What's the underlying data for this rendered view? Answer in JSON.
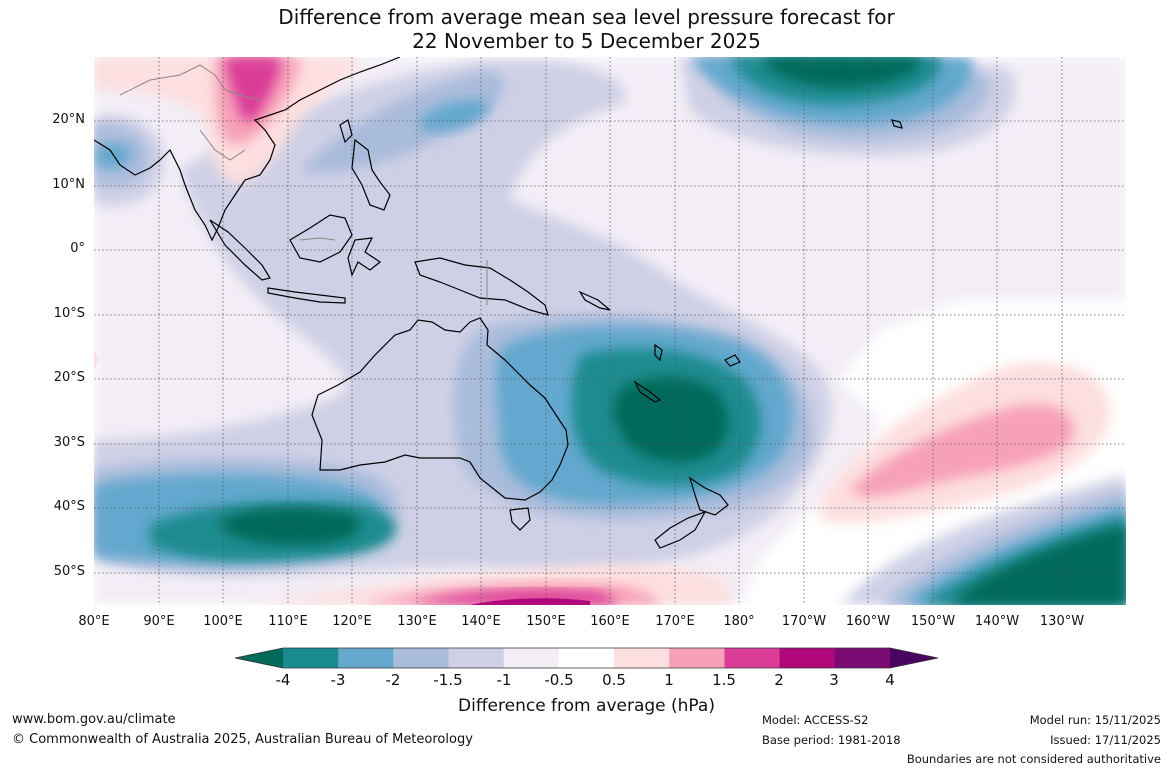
{
  "title": {
    "line1": "Difference from average mean sea level pressure forecast for",
    "line2": "22 November to 5 December 2025"
  },
  "map": {
    "latitude_labels": [
      "20°N",
      "10°N",
      "0°",
      "10°S",
      "20°S",
      "30°S",
      "40°S",
      "50°S"
    ],
    "longitude_labels": [
      "80°E",
      "90°E",
      "100°E",
      "110°E",
      "120°E",
      "130°E",
      "140°E",
      "150°E",
      "160°E",
      "170°E",
      "180°",
      "170°W",
      "160°W",
      "150°W",
      "140°W",
      "130°W"
    ],
    "anomaly_regions": [
      {
        "name": "southern-indian-ocean-low",
        "anomaly_hpa": -4
      },
      {
        "name": "tasman-coral-sea-low",
        "anomaly_hpa": -4
      },
      {
        "name": "north-pacific-low",
        "anomaly_hpa": -4
      },
      {
        "name": "southeast-pacific-low",
        "anomaly_hpa": -4
      },
      {
        "name": "south-pacific-high",
        "anomaly_hpa": 1.5
      },
      {
        "name": "southern-ocean-high",
        "anomaly_hpa": 3
      },
      {
        "name": "south-china-high",
        "anomaly_hpa": 1.5
      }
    ]
  },
  "colorbar": {
    "levels": [
      "-4",
      "-3",
      "-2",
      "-1.5",
      "-1",
      "-0.5",
      "0.5",
      "1",
      "1.5",
      "2",
      "3",
      "4"
    ],
    "colors": [
      "#006b5a",
      "#1a8c90",
      "#64a8ce",
      "#a9bcdc",
      "#cfd0e6",
      "#f3eef6",
      "#ffffff",
      "#fddfdf",
      "#f7a1b8",
      "#da3c98",
      "#b0087c",
      "#7b0a73",
      "#4a0460"
    ],
    "label": "Difference from average (hPa)"
  },
  "footer": {
    "url": "www.bom.gov.au/climate",
    "copyright": "© Commonwealth of Australia 2025, Australian Bureau of Meteorology",
    "model": "Model: ACCESS-S2",
    "base_period": "Base period: 1981-2018",
    "model_run": "Model run: 15/11/2025",
    "issued": "Issued: 17/11/2025",
    "disclaimer": "Boundaries are not considered authoritative"
  }
}
